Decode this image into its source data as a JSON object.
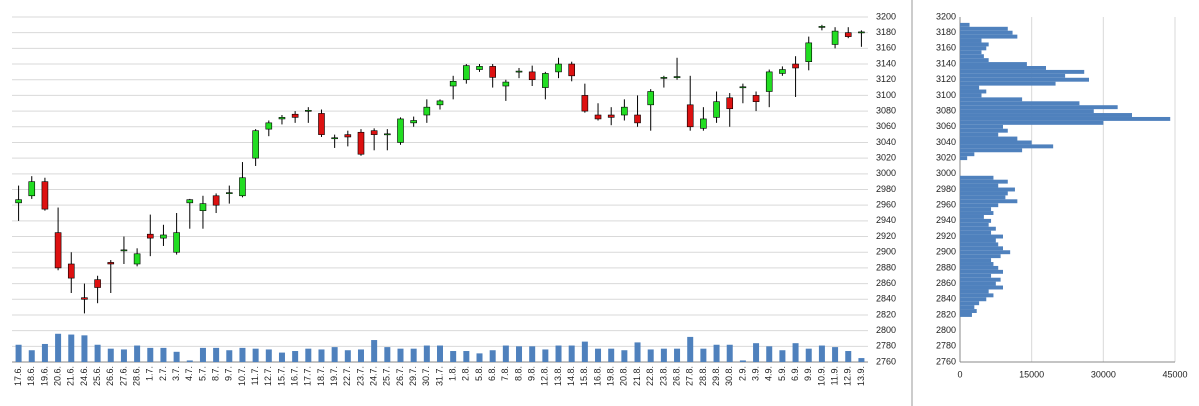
{
  "chart_data": [
    {
      "type": "candlestick",
      "categories": [
        "17.6.",
        "18.6.",
        "19.6.",
        "20.6.",
        "21.6.",
        "24.6.",
        "25.6.",
        "26.6.",
        "27.6.",
        "28.6.",
        "1.7.",
        "2.7.",
        "3.7.",
        "4.7.",
        "5.7.",
        "8.7.",
        "9.7.",
        "10.7.",
        "11.7.",
        "12.7.",
        "15.7.",
        "16.7.",
        "17.7.",
        "18.7.",
        "19.7.",
        "22.7.",
        "23.7.",
        "24.7.",
        "25.7.",
        "26.7.",
        "29.7.",
        "30.7.",
        "31.7.",
        "1.8.",
        "2.8.",
        "5.8.",
        "6.8.",
        "7.8.",
        "8.8.",
        "9.8.",
        "12.8.",
        "13.8.",
        "14.8.",
        "15.8.",
        "16.8.",
        "19.8.",
        "20.8.",
        "21.8.",
        "22.8.",
        "23.8.",
        "26.8.",
        "27.8.",
        "28.8.",
        "29.8.",
        "30.8.",
        "2.9.",
        "3.9.",
        "4.9.",
        "5.9.",
        "6.9.",
        "9.9.",
        "10.9.",
        "11.9.",
        "12.9.",
        "13.9."
      ],
      "open": [
        2963,
        2972,
        2990,
        2925,
        2885,
        2842,
        2865,
        2887,
        2902,
        2885,
        2923,
        2918,
        2900,
        2963,
        2953,
        2972,
        2975,
        2972,
        3020,
        3057,
        3070,
        3076,
        3080,
        3077,
        3045,
        3050,
        3053,
        3055,
        3050,
        3040,
        3065,
        3075,
        3088,
        3112,
        3120,
        3133,
        3137,
        3112,
        3130,
        3130,
        3110,
        3130,
        3140,
        3100,
        3075,
        3075,
        3075,
        3075,
        3088,
        3122,
        3123,
        3088,
        3058,
        3072,
        3097,
        3110,
        3100,
        3105,
        3128,
        3140,
        3143,
        3187,
        3165,
        3180,
        3180
      ],
      "high": [
        2985,
        2997,
        2995,
        2957,
        2900,
        2860,
        2870,
        2890,
        2920,
        2905,
        2948,
        2935,
        2950,
        2968,
        2972,
        2975,
        2985,
        3015,
        3057,
        3068,
        3075,
        3080,
        3085,
        3082,
        3050,
        3055,
        3057,
        3058,
        3057,
        3072,
        3073,
        3095,
        3095,
        3125,
        3140,
        3140,
        3140,
        3120,
        3135,
        3138,
        3130,
        3148,
        3143,
        3115,
        3090,
        3085,
        3095,
        3100,
        3108,
        3125,
        3148,
        3125,
        3085,
        3105,
        3103,
        3115,
        3105,
        3133,
        3137,
        3150,
        3175,
        3190,
        3187,
        3187,
        3183
      ],
      "low": [
        2940,
        2968,
        2953,
        2877,
        2848,
        2822,
        2835,
        2848,
        2885,
        2882,
        2895,
        2908,
        2897,
        2930,
        2930,
        2950,
        2962,
        2970,
        3010,
        3048,
        3063,
        3065,
        3065,
        3047,
        3033,
        3035,
        3023,
        3030,
        3030,
        3037,
        3060,
        3065,
        3082,
        3095,
        3115,
        3130,
        3110,
        3093,
        3122,
        3112,
        3095,
        3122,
        3118,
        3078,
        3068,
        3062,
        3068,
        3060,
        3055,
        3110,
        3120,
        3055,
        3055,
        3065,
        3060,
        3090,
        3080,
        3085,
        3125,
        3098,
        3132,
        3183,
        3160,
        3173,
        3162
      ],
      "close": [
        2967,
        2990,
        2955,
        2880,
        2867,
        2840,
        2855,
        2885,
        2903,
        2898,
        2918,
        2922,
        2925,
        2967,
        2962,
        2960,
        2976,
        2995,
        3055,
        3065,
        3072,
        3072,
        3081,
        3050,
        3046,
        3047,
        3025,
        3050,
        3051,
        3070,
        3068,
        3085,
        3093,
        3118,
        3138,
        3137,
        3123,
        3117,
        3131,
        3120,
        3128,
        3140,
        3125,
        3080,
        3070,
        3072,
        3085,
        3065,
        3105,
        3123,
        3124,
        3060,
        3070,
        3092,
        3083,
        3111,
        3092,
        3130,
        3133,
        3135,
        3167,
        3188,
        3182,
        3175,
        3181
      ],
      "series": [
        {
          "name": "Volume",
          "color": "#4f81bd",
          "values": [
            2782,
            2775,
            2783,
            2796,
            2795,
            2794,
            2782,
            2777,
            2776,
            2781,
            2778,
            2778,
            2773,
            2762,
            2778,
            2778,
            2775,
            2778,
            2777,
            2776,
            2772,
            2774,
            2777,
            2776,
            2779,
            2775,
            2776,
            2788,
            2779,
            2777,
            2777,
            2781,
            2781,
            2774,
            2774,
            2771,
            2775,
            2781,
            2780,
            2780,
            2776,
            2781,
            2781,
            2786,
            2777,
            2777,
            2775,
            2785,
            2776,
            2777,
            2777,
            2792,
            2777,
            2782,
            2782,
            2762,
            2784,
            2780,
            2775,
            2784,
            2777,
            2781,
            2779,
            2774,
            2765
          ]
        }
      ],
      "up_color": "#22dd22",
      "down_color": "#dd1111",
      "ylim": [
        2760,
        3200
      ],
      "yticks": [
        2760,
        2780,
        2800,
        2820,
        2840,
        2860,
        2880,
        2900,
        2920,
        2940,
        2960,
        2980,
        3000,
        3020,
        3040,
        3060,
        3080,
        3100,
        3120,
        3140,
        3160,
        3180,
        3200
      ],
      "grid": true
    },
    {
      "type": "barh",
      "y": [
        2820,
        2825,
        2830,
        2835,
        2840,
        2845,
        2850,
        2855,
        2860,
        2865,
        2870,
        2875,
        2880,
        2885,
        2890,
        2895,
        2900,
        2905,
        2910,
        2915,
        2920,
        2925,
        2930,
        2935,
        2940,
        2945,
        2950,
        2955,
        2960,
        2965,
        2970,
        2975,
        2980,
        2985,
        2990,
        2995,
        3000,
        3005,
        3010,
        3015,
        3020,
        3025,
        3030,
        3035,
        3040,
        3045,
        3050,
        3055,
        3060,
        3065,
        3070,
        3075,
        3080,
        3085,
        3090,
        3095,
        3100,
        3105,
        3110,
        3115,
        3120,
        3125,
        3130,
        3135,
        3140,
        3145,
        3150,
        3155,
        3160,
        3165,
        3170,
        3175,
        3180,
        3185,
        3190
      ],
      "values": [
        2500,
        3500,
        3000,
        4000,
        5500,
        7000,
        6000,
        9000,
        7500,
        8500,
        6500,
        9000,
        8000,
        7000,
        6500,
        8500,
        10500,
        9000,
        8000,
        7500,
        9000,
        6500,
        7500,
        6000,
        6500,
        5000,
        7000,
        6500,
        8000,
        12000,
        9500,
        10000,
        11500,
        8000,
        10000,
        7000,
        0,
        0,
        0,
        0,
        1500,
        3000,
        13000,
        19500,
        15000,
        12000,
        8000,
        10000,
        9000,
        30000,
        44000,
        36000,
        28000,
        33000,
        25000,
        13000,
        4500,
        5500,
        4000,
        20000,
        27000,
        22000,
        26000,
        18000,
        14000,
        6000,
        5000,
        4500,
        5500,
        6000,
        4500,
        12000,
        11000,
        10000,
        2000
      ],
      "color": "#4f81bd",
      "ylim": [
        2760,
        3200
      ],
      "yticks": [
        2760,
        2780,
        2800,
        2820,
        2840,
        2860,
        2880,
        2900,
        2920,
        2940,
        2960,
        2980,
        3000,
        3020,
        3040,
        3060,
        3080,
        3100,
        3120,
        3140,
        3160,
        3180,
        3200
      ],
      "xlim": [
        0,
        45000
      ],
      "xticks": [
        0,
        15000,
        30000,
        45000
      ],
      "grid": true
    }
  ]
}
